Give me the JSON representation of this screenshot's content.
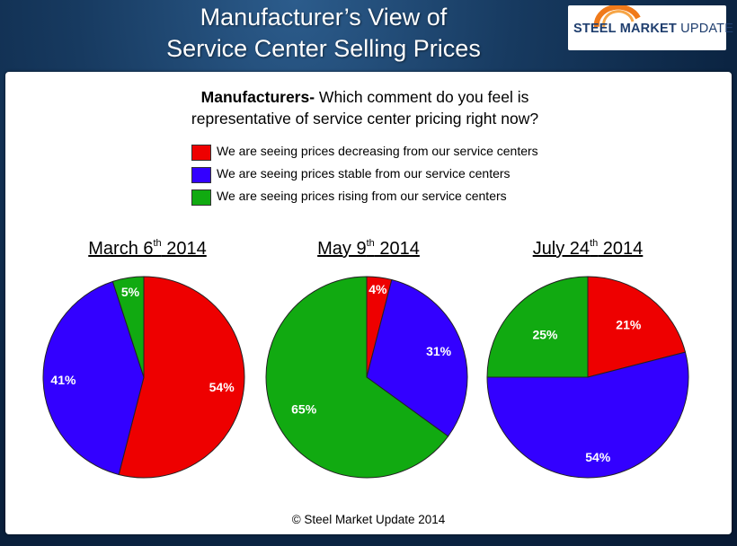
{
  "title": {
    "line1": "Manufacturer’s View of",
    "line2": "Service Center Selling Prices"
  },
  "logo": {
    "text_bold": "STEEL MARKET",
    "text_regular": "UPDATE"
  },
  "question": {
    "bold": "Manufacturers-",
    "line1_rest": " Which comment do you feel is",
    "line2": "representative of service center pricing right now?"
  },
  "colors": {
    "decreasing": "#ee0000",
    "stable": "#3300ff",
    "rising": "#11aa11"
  },
  "chart_data": [
    {
      "type": "pie",
      "title_main": "March 6",
      "title_sup": "th",
      "title_year": " 2014",
      "slices": [
        {
          "name": "We are seeing prices decreasing from our service centers",
          "value": 54,
          "label": "54%"
        },
        {
          "name": "We are seeing prices stable from our service centers",
          "value": 41,
          "label": "41%"
        },
        {
          "name": "We are seeing prices rising from our service centers",
          "value": 5,
          "label": "5%"
        }
      ]
    },
    {
      "type": "pie",
      "title_main": "May 9",
      "title_sup": "th",
      "title_year": " 2014",
      "slices": [
        {
          "name": "We are seeing prices decreasing from our service centers",
          "value": 4,
          "label": "4%"
        },
        {
          "name": "We are seeing prices stable from our service centers",
          "value": 31,
          "label": "31%"
        },
        {
          "name": "We are seeing prices rising from our service centers",
          "value": 65,
          "label": "65%"
        }
      ]
    },
    {
      "type": "pie",
      "title_main": "July 24",
      "title_sup": "th",
      "title_year": " 2014",
      "slices": [
        {
          "name": "We are seeing prices decreasing from our service centers",
          "value": 21,
          "label": "21%"
        },
        {
          "name": "We are seeing prices stable from our service centers",
          "value": 54,
          "label": "54%"
        },
        {
          "name": "We are seeing prices rising from our service centers",
          "value": 25,
          "label": "25%"
        }
      ]
    }
  ],
  "legend": [
    {
      "key": "decreasing",
      "label": "We are seeing prices decreasing from our service centers"
    },
    {
      "key": "stable",
      "label": "We are seeing prices stable from our service centers"
    },
    {
      "key": "rising",
      "label": "We are seeing prices rising from our service centers"
    }
  ],
  "copyright": "© Steel Market Update 2014"
}
